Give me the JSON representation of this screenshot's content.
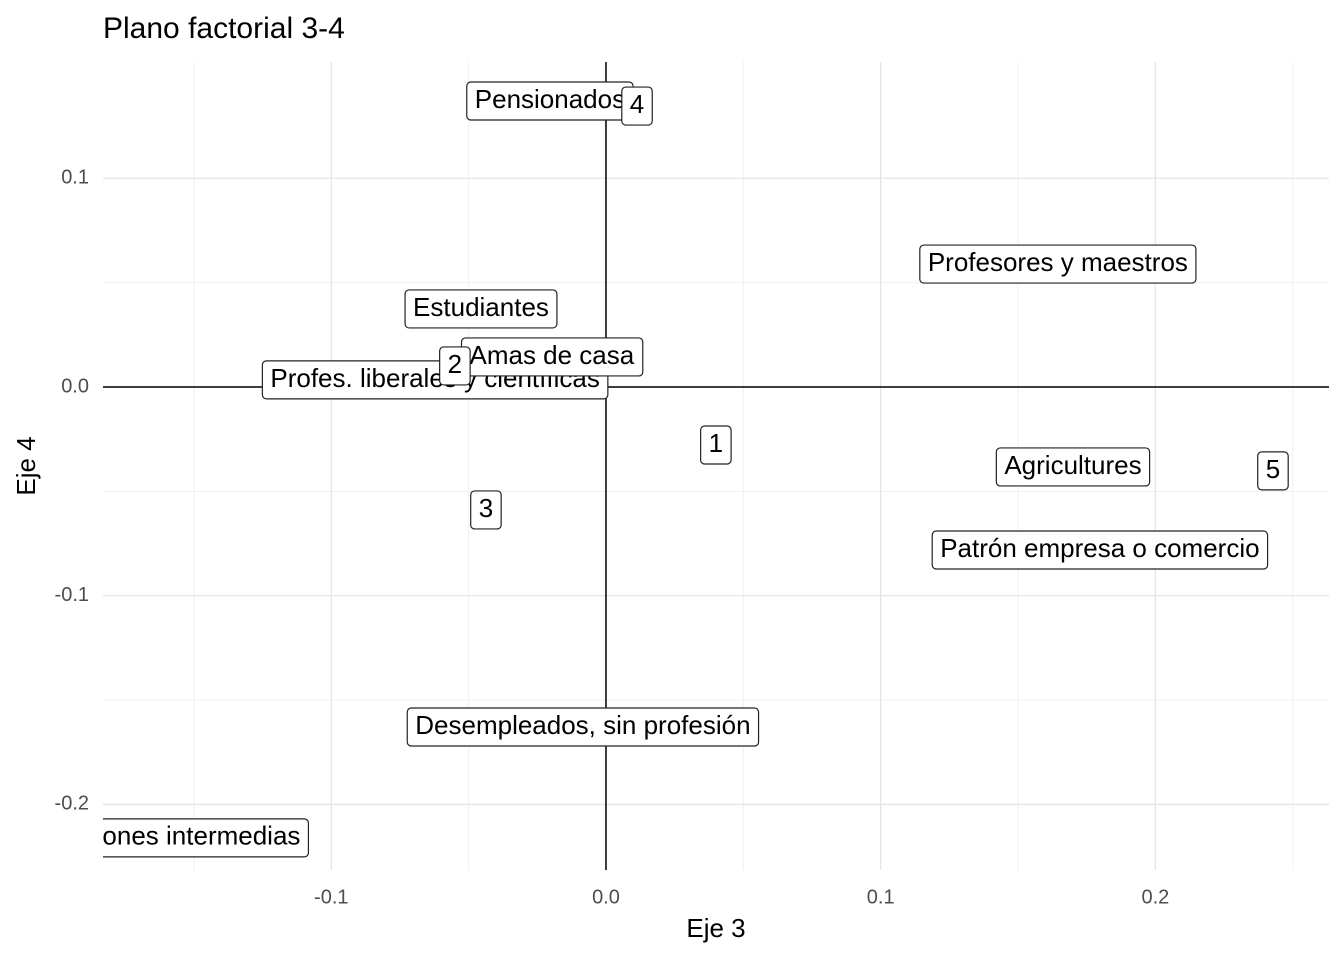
{
  "chart_data": {
    "type": "label-scatter",
    "title": "Plano factorial 3-4",
    "x_label": "Eje 3",
    "y_label": "Eje 4",
    "labels": [
      "Profes. liberales y científicas",
      "Estudiantes",
      "Amas de casa",
      "2",
      "Pensionados",
      "4",
      "Profesores y maestros",
      "1",
      "Agricultures",
      "5",
      "3",
      "Patrón empresa o comercio",
      "Desempleados, sin profesión",
      "Profesiones intermedias"
    ],
    "x": [
      -0.0622,
      -0.0455,
      -0.0197,
      -0.055,
      -0.0204,
      0.0113,
      0.1645,
      0.04,
      0.17,
      0.2428,
      -0.0437,
      0.1798,
      -0.0084,
      -0.162
    ],
    "y": [
      0.0034,
      0.0374,
      0.0144,
      0.0101,
      0.137,
      0.1346,
      0.0589,
      -0.0278,
      -0.0383,
      -0.0402,
      -0.0589,
      -0.0781,
      -0.1629,
      -0.216
    ],
    "xlim": [
      -0.1831,
      0.2632
    ],
    "ylim": [
      -0.2314,
      0.1557
    ],
    "xticks": [
      -0.1,
      {
        "value": 0,
        "label": "0.0"
      },
      0.1,
      0.2
    ],
    "yticks": [
      -0.2,
      -0.1,
      {
        "value": 0,
        "label": "0.0"
      },
      0.1
    ],
    "x_minor_grid": [
      -0.15,
      -0.05,
      0.05,
      0.15,
      0.25
    ],
    "y_minor_grid": [
      -0.15,
      -0.05,
      0.05
    ],
    "hline": 0,
    "vline": 0,
    "grid": true
  }
}
